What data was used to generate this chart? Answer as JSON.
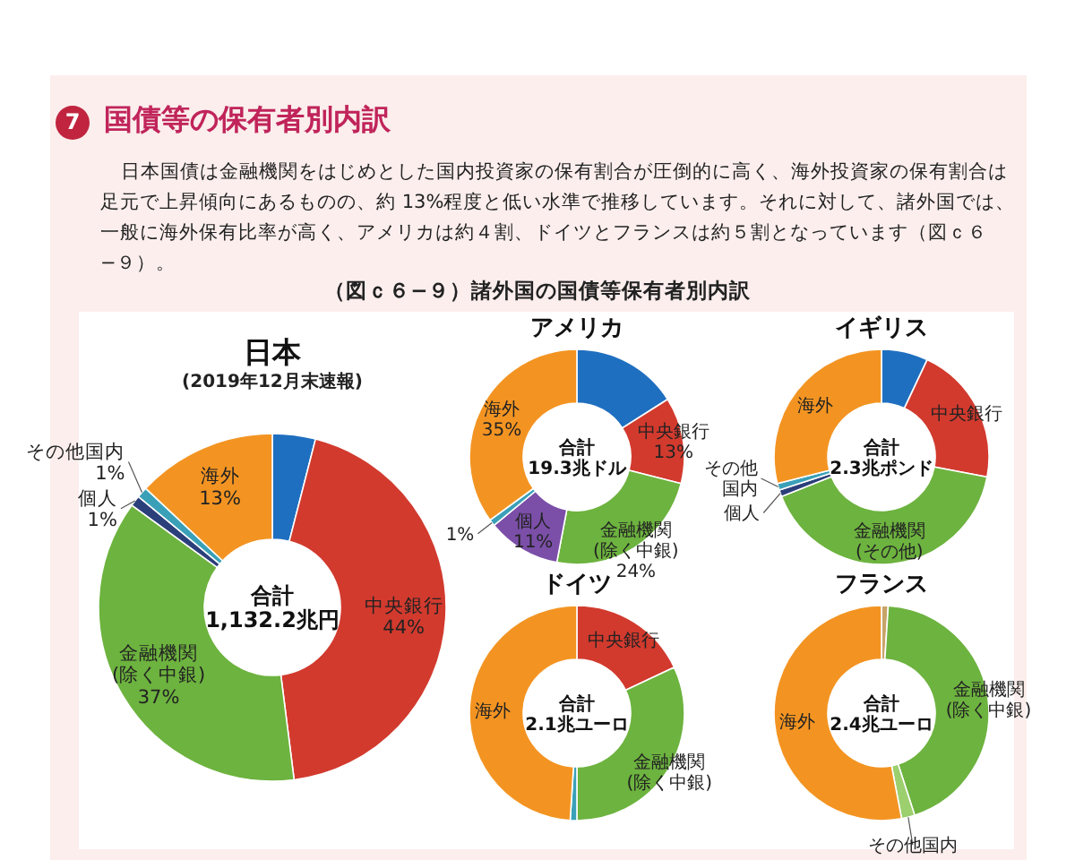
{
  "chart_data": [
    {
      "type": "other",
      "title": "国債等の保有者別内訳",
      "annotations": [
        "7",
        "日本国債は金融機関をはじめとした国内投資家の保有割合が圧倒的に高く、海外投資家の保有割合は足元で上昇傾向にあるものの、約 13%程度と低い水準で推移しています。それに対して、諸外国では、一般に海外保有比率が高く、アメリカは約４割、ドイツとフランスは約５割となっています（図ｃ６−９）。",
        "（図ｃ６−９）諸外国の国債等保有者別内訳"
      ]
    },
    {
      "type": "donut",
      "title": "日本",
      "subtitle": "(2019年12月末速報)",
      "categories": [
        null,
        "中央銀行",
        "金融機関\n(除く中銀)",
        "個人",
        "その他国内",
        "海外"
      ],
      "values": [
        4,
        44,
        37,
        1,
        1,
        13
      ],
      "value_labels": [
        null,
        "44%",
        "37%",
        "1%",
        "1%",
        "13%"
      ],
      "colors": [
        "#1f6fc0",
        "#d23a2e",
        "#6db33f",
        "#2b3f7a",
        "#3aa0b8",
        "#f39422"
      ],
      "annotations": [
        "合計",
        "1,132.2兆円"
      ]
    },
    {
      "type": "donut",
      "title": "アメリカ",
      "categories": [
        null,
        "中央銀行",
        "金融機関\n(除く中銀)",
        "個人",
        null,
        "海外"
      ],
      "values": [
        16,
        13,
        24,
        11,
        1,
        35
      ],
      "value_labels": [
        null,
        "13%",
        "24%",
        "11%",
        "1%",
        "35%"
      ],
      "colors": [
        "#1f6fc0",
        "#d23a2e",
        "#6db33f",
        "#7b4fa8",
        "#3aa0b8",
        "#f39422"
      ],
      "annotations": [
        "合計",
        "19.3兆ドル"
      ]
    },
    {
      "type": "donut",
      "title": "イギリス",
      "categories": [
        null,
        "中央銀行",
        "金融機関\n(その他)",
        "個人",
        "その他国内",
        "海外"
      ],
      "values": [
        7,
        21,
        41,
        1,
        1,
        29
      ],
      "value_labels": [
        null,
        null,
        null,
        null,
        null,
        null
      ],
      "colors": [
        "#1f6fc0",
        "#d23a2e",
        "#6db33f",
        "#2b3f7a",
        "#3aa0b8",
        "#f39422"
      ],
      "annotations": [
        "合計",
        "2.3兆ポンド"
      ]
    },
    {
      "type": "donut",
      "title": "ドイツ",
      "categories": [
        "中央銀行",
        "金融機関\n(除く中銀)",
        null,
        "海外"
      ],
      "values": [
        18,
        32,
        1,
        49
      ],
      "value_labels": [
        null,
        null,
        null,
        null
      ],
      "colors": [
        "#d23a2e",
        "#6db33f",
        "#3aa0b8",
        "#f39422"
      ],
      "annotations": [
        "合計",
        "2.1兆ユーロ"
      ]
    },
    {
      "type": "donut",
      "title": "フランス",
      "categories": [
        null,
        "金融機関\n(除く中銀)",
        "その他国内",
        "海外"
      ],
      "values": [
        1,
        44,
        2,
        53
      ],
      "value_labels": [
        null,
        null,
        null,
        null
      ],
      "colors": [
        "#c8a46a",
        "#6db33f",
        "#9ccf6e",
        "#f39422"
      ],
      "annotations": [
        "合計",
        "2.4兆ユーロ"
      ]
    }
  ]
}
